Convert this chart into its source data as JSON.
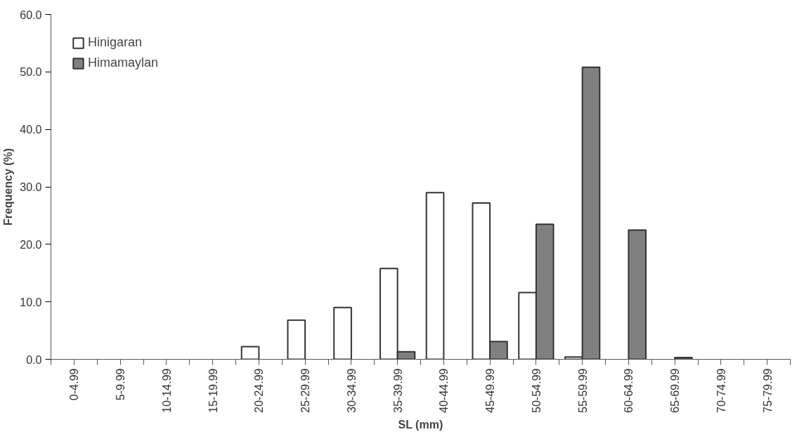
{
  "chart_data": {
    "type": "bar",
    "xlabel": "SL (mm)",
    "ylabel": "Frequency (%)",
    "categories": [
      "0-4.99",
      "5-9.99",
      "10-14.99",
      "15-19.99",
      "20-24.99",
      "25-29.99",
      "30-34.99",
      "35-39.99",
      "40-44.99",
      "45-49.99",
      "50-54.99",
      "55-59.99",
      "60-64.99",
      "65-69.99",
      "70-74.99",
      "75-79.99"
    ],
    "series": [
      {
        "name": "Hinigaran",
        "color": "#ffffff",
        "values": [
          0,
          0,
          0,
          0,
          2.2,
          6.8,
          9.0,
          15.8,
          29.0,
          27.2,
          11.6,
          0.4,
          0,
          0,
          0,
          0
        ]
      },
      {
        "name": "Himamaylan",
        "color": "#808080",
        "values": [
          0,
          0,
          0,
          0,
          0,
          0,
          0,
          1.3,
          0,
          3.1,
          23.5,
          50.8,
          22.5,
          0.3,
          0,
          0
        ]
      }
    ],
    "ylim": [
      0,
      60
    ],
    "yticks": [
      {
        "value": 0,
        "label": "0.0"
      },
      {
        "value": 10,
        "label": "10.0"
      },
      {
        "value": 20,
        "label": "20.0"
      },
      {
        "value": 30,
        "label": "30.0"
      },
      {
        "value": 40,
        "label": "40.0"
      },
      {
        "value": 50,
        "label": "50.0"
      },
      {
        "value": 60,
        "label": "60.0"
      }
    ],
    "grid": false,
    "legend": "top left"
  }
}
